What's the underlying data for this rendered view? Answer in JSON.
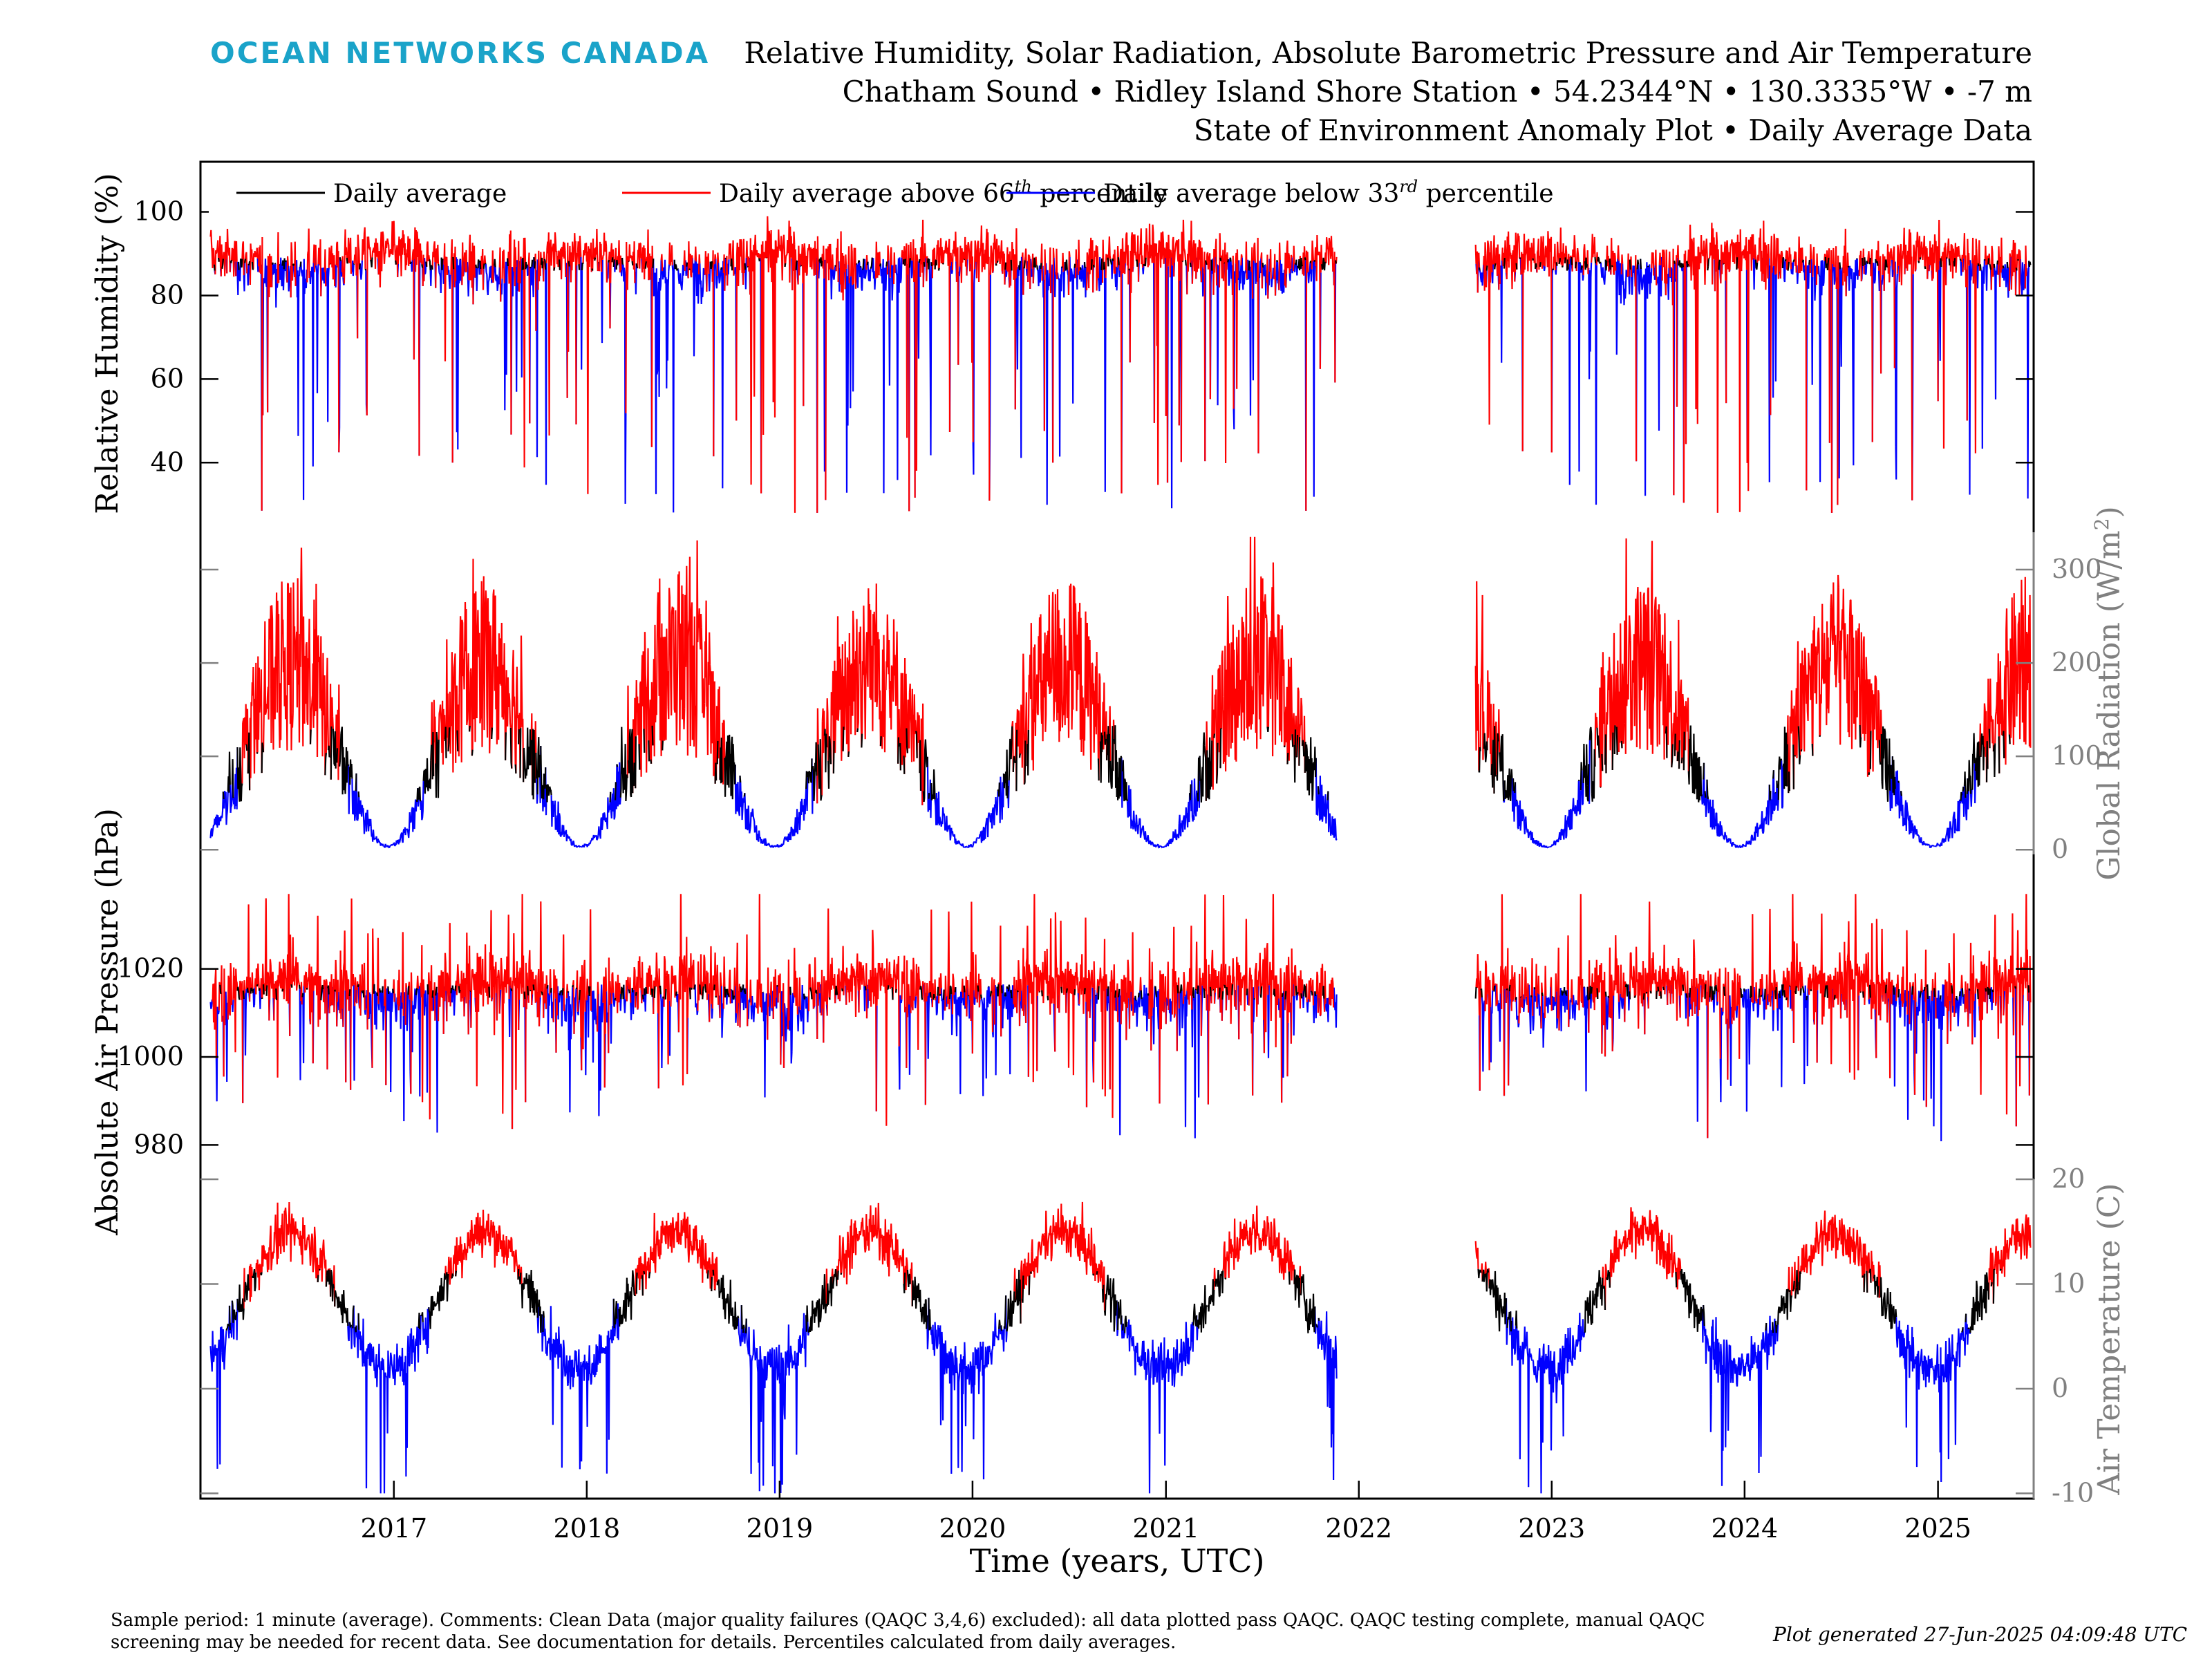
{
  "header": {
    "logo_text": "OCEAN NETWORKS CANADA",
    "title_line1": "Relative Humidity, Solar Radiation, Absolute Barometric Pressure and Air Temperature",
    "title_line2": "Chatham Sound • Ridley Island Shore Station • 54.2344°N • 130.3335°W • -7 m",
    "title_line3": "State of Environment Anomaly Plot • Daily Average Data"
  },
  "footer": {
    "comment": "Sample period: 1 minute (average). Comments: Clean Data (major quality failures (QAQC 3,4,6) excluded): all data plotted pass QAQC. QAQC testing complete, manual QAQC screening may be needed for recent data. See documentation for details. Percentiles calculated from daily averages.",
    "generated": "Plot generated 27-Jun-2025 04:09:48 UTC"
  },
  "colors": {
    "accent": "#1aa3c9",
    "average": "#000000",
    "above": "#ff0000",
    "below": "#0000ff",
    "right_axis": "#808080"
  },
  "chart_data": {
    "type": "line",
    "xlabel": "Time (years, UTC)",
    "x_ticks": [
      "2017",
      "2018",
      "2019",
      "2020",
      "2021",
      "2022",
      "2023",
      "2024",
      "2025"
    ],
    "xlim": [
      "2016-01-01",
      "2025-07-01"
    ],
    "data_gap": [
      "2021-11-20",
      "2022-08-10"
    ],
    "legend": {
      "placement": "top-left",
      "entries": [
        {
          "label": "Daily average",
          "color": "#000000"
        },
        {
          "label": "Daily average above 66",
          "sup": "th",
          "suffix": " percentile",
          "color": "#ff0000"
        },
        {
          "label": "Daily average below 33",
          "sup": "rd",
          "suffix": " percentile",
          "color": "#0000ff"
        }
      ]
    },
    "panels": [
      {
        "key": "rh",
        "ylabel": "Relative Humidity (%)",
        "side": "left",
        "ticks": [
          40,
          60,
          80,
          100
        ],
        "ylim": [
          25,
          112
        ],
        "approx_daily_average": {
          "mean": 87,
          "annual_amplitude": 3,
          "dips_to": 28
        }
      },
      {
        "key": "rad",
        "ylabel": "Global Radiation (W/m",
        "ylabel_sup": "2",
        "ylabel_end": ")",
        "side": "right",
        "ticks": [
          0,
          100,
          200,
          300
        ],
        "ylim": [
          -5,
          340
        ],
        "approx_daily_average": {
          "summer_peak": 330,
          "winter_min": 0
        }
      },
      {
        "key": "pres",
        "ylabel": "Absolute Air Pressure (hPa)",
        "side": "left",
        "ticks": [
          980,
          1000,
          1020
        ],
        "ylim": [
          970,
          1046
        ],
        "approx_daily_average": {
          "mean": 1015,
          "min": 976,
          "max": 1036
        }
      },
      {
        "key": "temp",
        "ylabel": "Air Temperature (C)",
        "side": "right",
        "ticks": [
          -10,
          0,
          10,
          20
        ],
        "ylim": [
          -10.5,
          20
        ],
        "approx_daily_average": {
          "summer_peak": 15,
          "winter_trough": 2,
          "min": -10,
          "max": 20
        }
      }
    ]
  }
}
